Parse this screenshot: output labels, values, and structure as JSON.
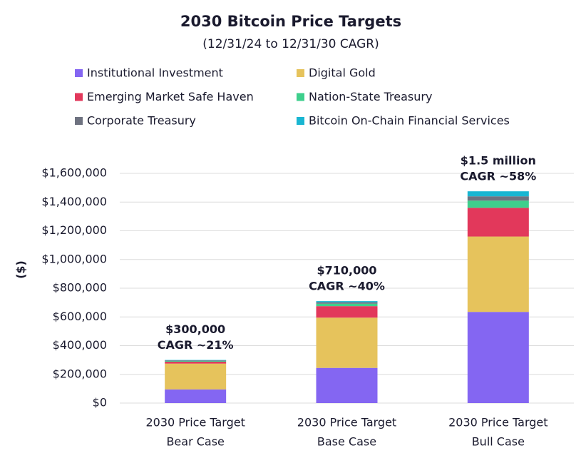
{
  "chart_data": {
    "type": "stacked_bar",
    "title": "2030 Bitcoin Price Targets",
    "subtitle": "(12/31/24 to 12/31/30 CAGR)",
    "y_label": "($)",
    "categories": [
      [
        "2030 Price Target",
        "Bear Case"
      ],
      [
        "2030 Price Target",
        "Base Case"
      ],
      [
        "2030 Price Target",
        "Bull Case"
      ]
    ],
    "annotations": [
      [
        "$300,000",
        "CAGR ~21%"
      ],
      [
        "$710,000",
        "CAGR ~40%"
      ],
      [
        "$1.5 million",
        "CAGR ~58%"
      ]
    ],
    "series": [
      {
        "name": "Institutional Investment",
        "color": "#8466f2",
        "values": [
          95000,
          245000,
          635000
        ]
      },
      {
        "name": "Digital Gold",
        "color": "#e6c35c",
        "values": [
          180000,
          350000,
          525000
        ]
      },
      {
        "name": "Emerging Market Safe Haven",
        "color": "#e2385b",
        "values": [
          13000,
          80000,
          200000
        ]
      },
      {
        "name": "Nation-State Treasury",
        "color": "#3ecf8c",
        "values": [
          5000,
          17000,
          50000
        ]
      },
      {
        "name": "Corporate Treasury",
        "color": "#6e7280",
        "values": [
          4000,
          10000,
          30000
        ]
      },
      {
        "name": "Bitcoin On-Chain Financial Services",
        "color": "#19b6d2",
        "values": [
          3000,
          8000,
          35000
        ]
      }
    ],
    "ylim": [
      0,
      1600000
    ],
    "yticks": [
      {
        "value": 0,
        "label": "$0"
      },
      {
        "value": 200000,
        "label": "$200,000"
      },
      {
        "value": 400000,
        "label": "$400,000"
      },
      {
        "value": 600000,
        "label": "$600,000"
      },
      {
        "value": 800000,
        "label": "$800,000"
      },
      {
        "value": 1000000,
        "label": "$1,000,000"
      },
      {
        "value": 1200000,
        "label": "$1,200,000"
      },
      {
        "value": 1400000,
        "label": "$1,400,000"
      },
      {
        "value": 1600000,
        "label": "$1,600,000"
      }
    ],
    "grid": true
  }
}
